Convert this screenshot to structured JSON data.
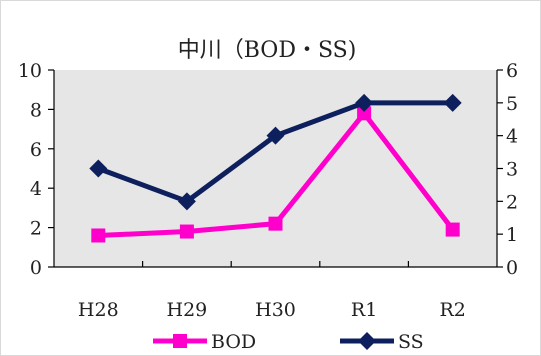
{
  "chart_data": {
    "type": "line",
    "title": "中川（BOD・SS)",
    "categories": [
      "H28",
      "H29",
      "H30",
      "R1",
      "R2"
    ],
    "left_axis": {
      "min": 0,
      "max": 10,
      "ticks": [
        0,
        2,
        4,
        6,
        8,
        10
      ]
    },
    "right_axis": {
      "min": 0,
      "max": 6,
      "ticks": [
        0,
        1,
        2,
        3,
        4,
        5,
        6
      ]
    },
    "plot_background": "#e6e6e6",
    "grid": false,
    "legend_position": "bottom",
    "series": [
      {
        "name": "BOD",
        "axis": "left",
        "values": [
          1.6,
          1.8,
          2.2,
          7.8,
          1.9
        ],
        "color": "#ff00cc",
        "marker": "square"
      },
      {
        "name": "SS",
        "axis": "right",
        "values": [
          3,
          2,
          4,
          5,
          5
        ],
        "color": "#0d1f5c",
        "marker": "diamond"
      }
    ]
  }
}
